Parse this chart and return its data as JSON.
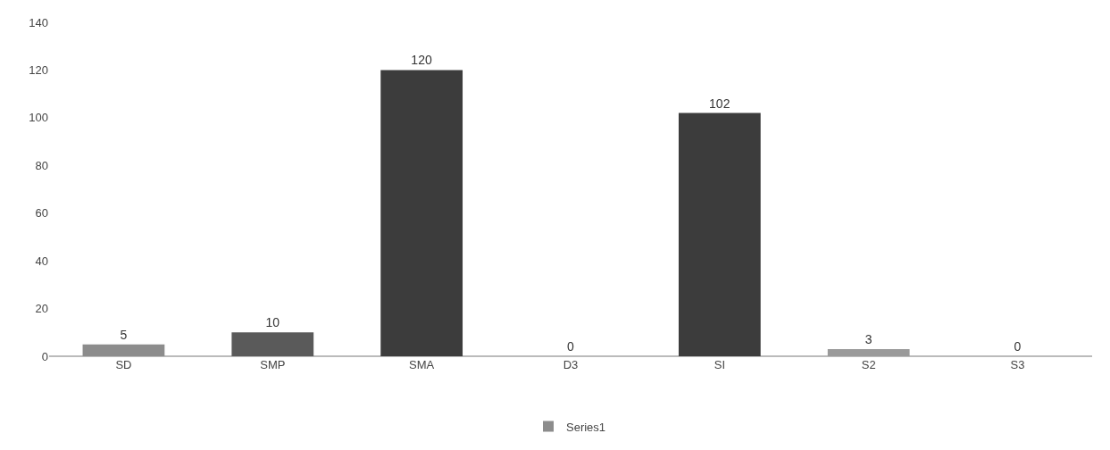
{
  "chart_data": {
    "type": "bar",
    "categories": [
      "SD",
      "SMP",
      "SMA",
      "D3",
      "SI",
      "S2",
      "S3"
    ],
    "series": [
      {
        "name": "Series1",
        "colors": [
          "#8c8c8c",
          "#5a5a5a",
          "#3c3c3c",
          "#3c3c3c",
          "#3c3c3c",
          "#9a9a9a",
          "#3c3c3c"
        ],
        "values": [
          5,
          10,
          120,
          0,
          102,
          3,
          0
        ]
      }
    ],
    "ylim": [
      0,
      140
    ],
    "yticks": [
      0,
      20,
      40,
      60,
      80,
      100,
      120,
      140
    ],
    "data_labels": true,
    "legend": "bottom",
    "grid": false
  }
}
